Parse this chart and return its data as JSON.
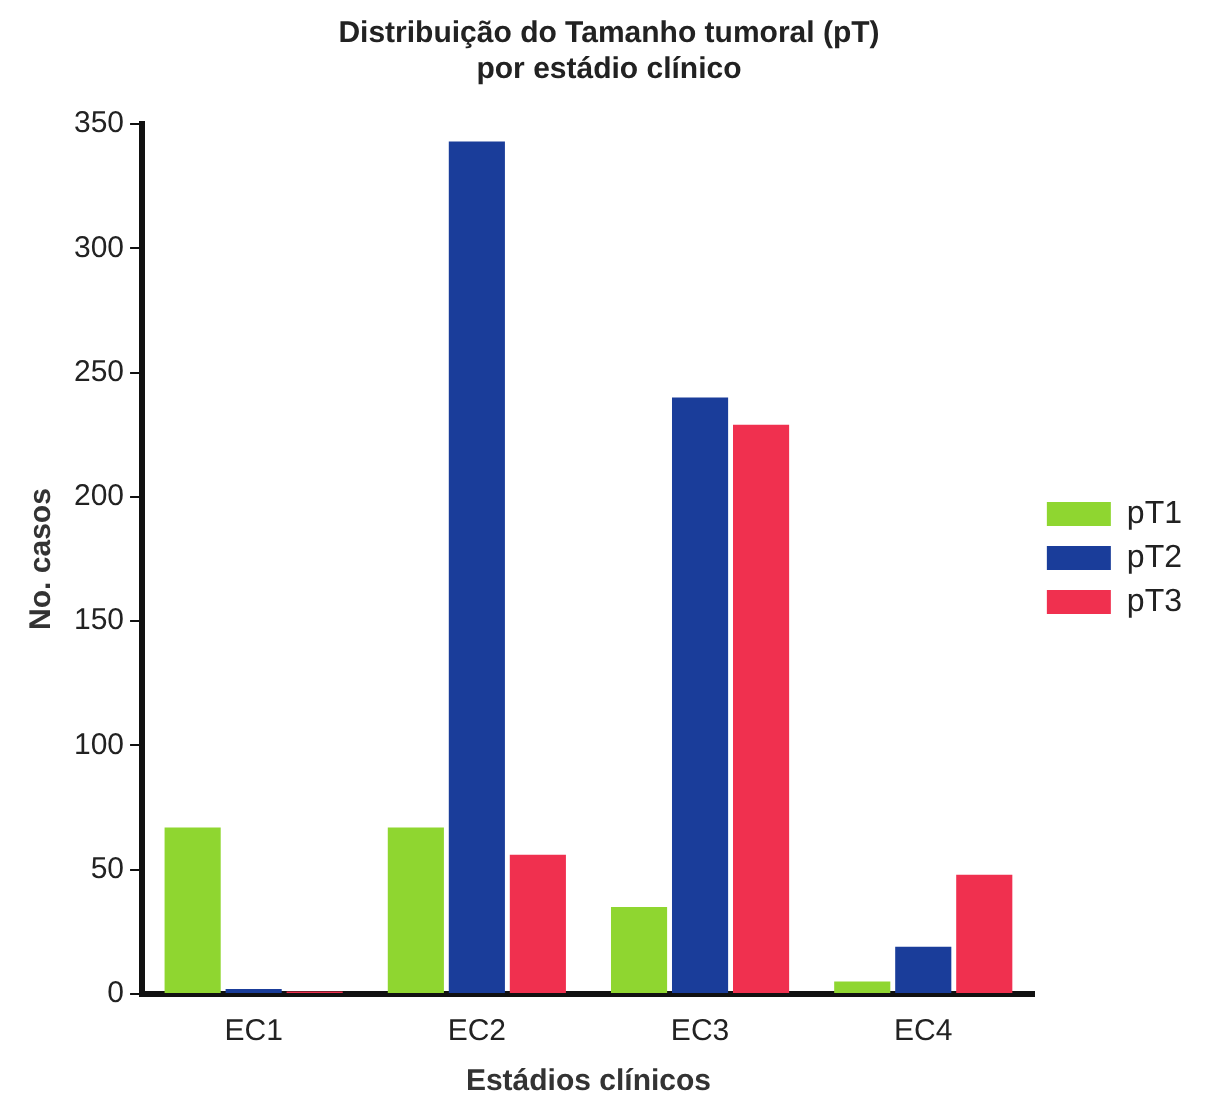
{
  "chart_data": {
    "type": "bar",
    "title": [
      "Distribuição do Tamanho tumoral (pT)",
      "por estádio clínico"
    ],
    "xlabel": "Estádios clínicos",
    "ylabel": "No. casos",
    "categories": [
      "EC1",
      "EC2",
      "EC3",
      "EC4"
    ],
    "series": [
      {
        "name": "pT1",
        "color": "#8fd630",
        "values": [
          67,
          67,
          35,
          5
        ]
      },
      {
        "name": "pT2",
        "color": "#1a3d9a",
        "values": [
          2,
          343,
          240,
          19
        ]
      },
      {
        "name": "pT3",
        "color": "#f0304f",
        "values": [
          1,
          56,
          229,
          48
        ]
      }
    ],
    "ylim": [
      0,
      350
    ],
    "yticks": [
      0,
      50,
      100,
      150,
      200,
      250,
      300,
      350
    ],
    "grid": false,
    "legend": "right"
  }
}
